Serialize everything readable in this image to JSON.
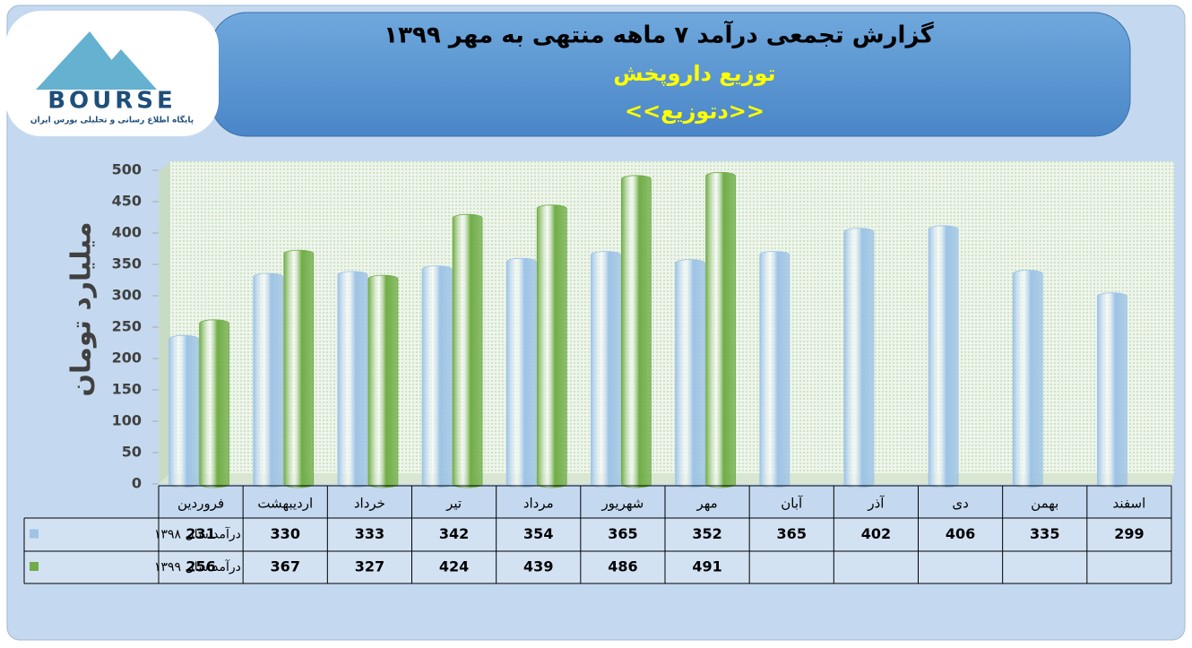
{
  "logo": {
    "name": "BOURSE",
    "tagline": "پایگاه اطلاع رسانی و تحلیلی بورس ایران"
  },
  "chart_data": {
    "type": "bar",
    "title": "گزارش تجمعی درآمد ۷ ماهه منتهی به مهر ۱۳۹۹",
    "subtitle": "توزیع داروپخش",
    "symbol": "<<دتوزیع>>",
    "y_label": "میلیارد تومان",
    "categories": [
      "فروردین",
      "اردیبهشت",
      "خرداد",
      "تیر",
      "مرداد",
      "شهریور",
      "مهر",
      "آبان",
      "آذر",
      "دی",
      "بهمن",
      "اسفند"
    ],
    "series": [
      {
        "name": "درآمد سال ۱۳۹۸",
        "color": "#9dc3e6",
        "values": [
          231,
          330,
          333,
          342,
          354,
          365,
          352,
          365,
          402,
          406,
          335,
          299
        ]
      },
      {
        "name": "درآمد سال ۱۳۹۹",
        "color": "#70ad47",
        "values": [
          256,
          367,
          327,
          424,
          439,
          486,
          491,
          null,
          null,
          null,
          null,
          null
        ]
      }
    ],
    "ylim": [
      0,
      500
    ],
    "yticks": [
      0,
      50,
      100,
      150,
      200,
      250,
      300,
      350,
      400,
      450,
      500
    ],
    "grid": false
  }
}
